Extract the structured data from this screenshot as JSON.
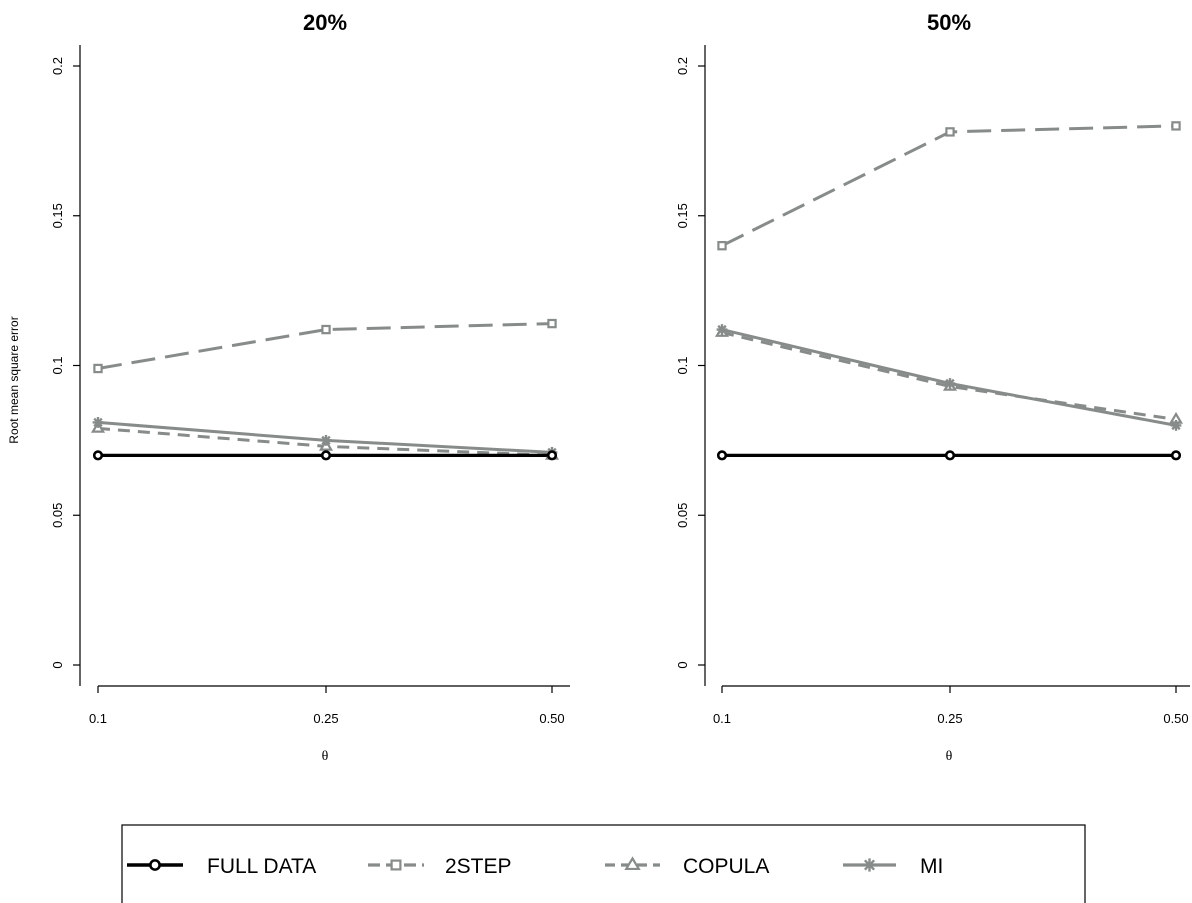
{
  "colors": {
    "full_data": "#000000",
    "gray": "#878c8a"
  },
  "chart_data": [
    {
      "type": "line",
      "title": "20%",
      "xlabel": "θ",
      "ylabel": "Root mean square error",
      "x_tick_labels": [
        "0.1",
        "0.25",
        "0.50"
      ],
      "y_ticks": [
        0,
        0.05,
        0.1,
        0.15,
        0.2
      ],
      "y_tick_labels": [
        "0",
        "0.05",
        "0.1",
        "0.15",
        "0.2"
      ],
      "ylim": [
        0,
        0.2
      ],
      "grid": false,
      "series": [
        {
          "name": "FULL DATA",
          "values": [
            0.07,
            0.07,
            0.07
          ],
          "marker": "circle",
          "dash": "solid"
        },
        {
          "name": "2STEP",
          "values": [
            0.099,
            0.112,
            0.114
          ],
          "marker": "square",
          "dash": "long-dash"
        },
        {
          "name": "COPULA",
          "values": [
            0.079,
            0.073,
            0.07
          ],
          "marker": "triangle",
          "dash": "dash"
        },
        {
          "name": "MI",
          "values": [
            0.081,
            0.075,
            0.071
          ],
          "marker": "asterisk",
          "dash": "solid"
        }
      ]
    },
    {
      "type": "line",
      "title": "50%",
      "xlabel": "θ",
      "ylabel": "",
      "x_tick_labels": [
        "0.1",
        "0.25",
        "0.50"
      ],
      "y_ticks": [
        0,
        0.05,
        0.1,
        0.15,
        0.2
      ],
      "y_tick_labels": [
        "0",
        "0.05",
        "0.1",
        "0.15",
        "0.2"
      ],
      "ylim": [
        0,
        0.2
      ],
      "grid": false,
      "series": [
        {
          "name": "FULL DATA",
          "values": [
            0.07,
            0.07,
            0.07
          ],
          "marker": "circle",
          "dash": "solid"
        },
        {
          "name": "2STEP",
          "values": [
            0.14,
            0.178,
            0.18
          ],
          "marker": "square",
          "dash": "long-dash"
        },
        {
          "name": "COPULA",
          "values": [
            0.111,
            0.093,
            0.082
          ],
          "marker": "triangle",
          "dash": "dash"
        },
        {
          "name": "MI",
          "values": [
            0.112,
            0.094,
            0.08
          ],
          "marker": "asterisk",
          "dash": "solid"
        }
      ]
    }
  ],
  "legend": {
    "placement": "bottom",
    "items": [
      {
        "label": "FULL DATA",
        "marker": "circle",
        "dash": "solid"
      },
      {
        "label": "2STEP",
        "marker": "square",
        "dash": "long-dash"
      },
      {
        "label": "COPULA",
        "marker": "triangle",
        "dash": "dash"
      },
      {
        "label": "MI",
        "marker": "asterisk",
        "dash": "solid"
      }
    ]
  }
}
